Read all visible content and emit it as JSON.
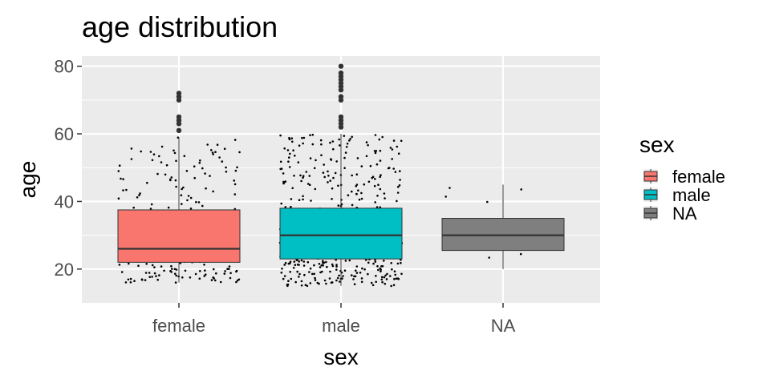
{
  "chart_data": {
    "type": "box",
    "title": "age distribution",
    "xlabel": "sex",
    "ylabel": "age",
    "categories": [
      "female",
      "male",
      "NA"
    ],
    "ylim": [
      10,
      83
    ],
    "yticks": [
      20,
      40,
      60,
      80
    ],
    "grid": true,
    "legend": {
      "title": "sex",
      "position": "right",
      "entries": [
        "female",
        "male",
        "NA"
      ]
    },
    "colors": {
      "female": "#F8766D",
      "male": "#00BFC4",
      "NA": "#7F7F7F",
      "panel": "#EBEBEB",
      "grid": "#FFFFFF"
    },
    "series": [
      {
        "name": "female",
        "min": 16,
        "q1": 22,
        "median": 26,
        "q3": 37.5,
        "max": 59,
        "outliers": [
          61,
          63,
          64,
          65,
          70,
          71,
          72
        ]
      },
      {
        "name": "male",
        "min": 15,
        "q1": 23,
        "median": 30,
        "q3": 38,
        "max": 60,
        "outliers": [
          62,
          63,
          64,
          65,
          70,
          71,
          73,
          74,
          75,
          76,
          77,
          78,
          80
        ]
      },
      {
        "name": "NA",
        "min": 20,
        "q1": 25.5,
        "median": 30,
        "q3": 35,
        "max": 45,
        "outliers": []
      }
    ]
  }
}
